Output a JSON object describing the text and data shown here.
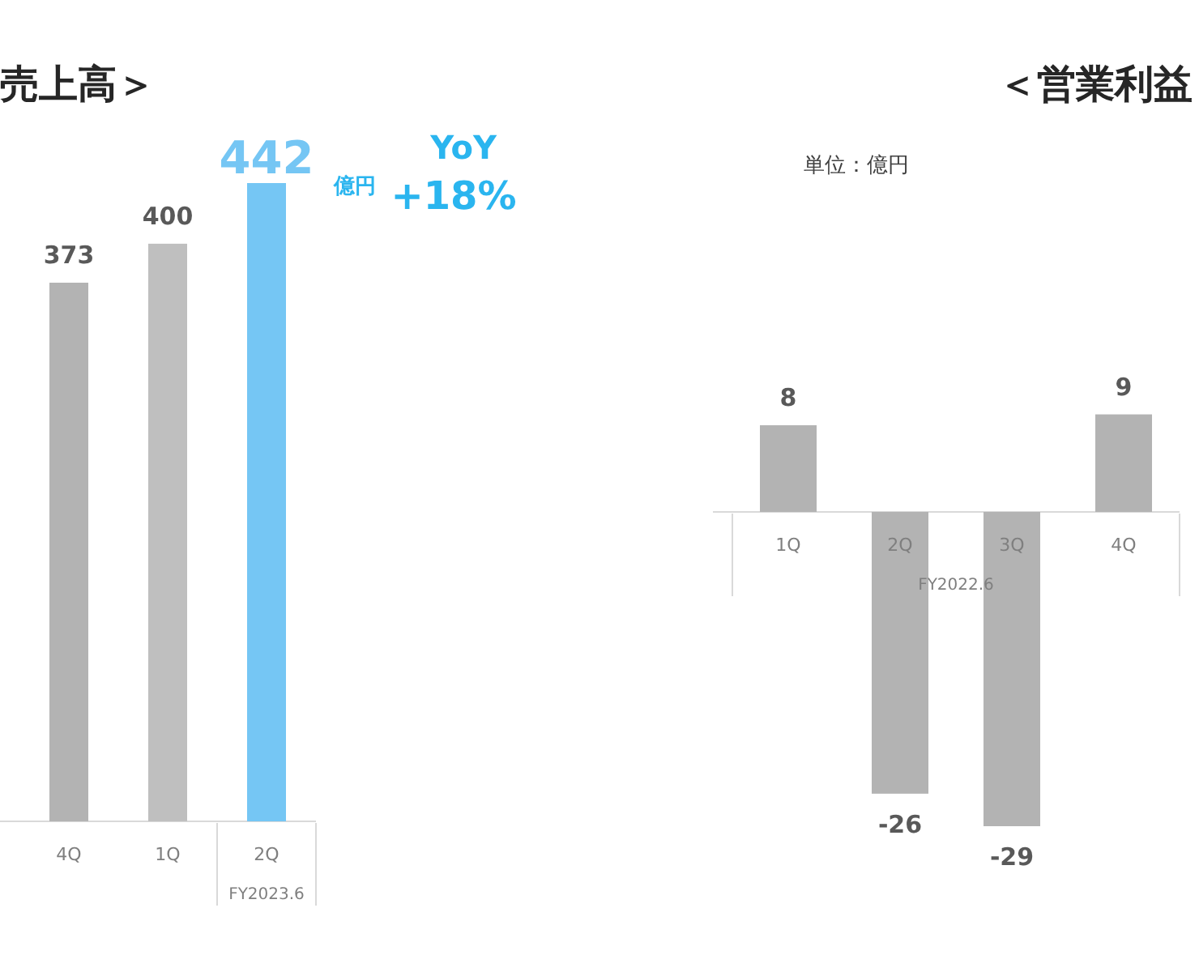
{
  "chart_data": [
    {
      "type": "bar",
      "title": "売上高＞",
      "xlabel": "FY2023.6",
      "categories": [
        "4Q",
        "1Q",
        "2Q"
      ],
      "values": [
        373,
        400,
        442
      ],
      "colors": [
        "#b3b3b3",
        "#bfbfbf",
        "#75c6f4"
      ],
      "data_labels": true,
      "annotations": [
        "億円",
        "YoY",
        "+18%"
      ]
    },
    {
      "type": "bar",
      "title": "＜営業利益",
      "subtitle": "単位：億円",
      "xlabel": "FY2022.6",
      "categories": [
        "1Q",
        "2Q",
        "3Q",
        "4Q"
      ],
      "values": [
        8,
        -26,
        -29,
        9
      ],
      "colors": [
        "#b3b3b3",
        "#b3b3b3",
        "#b3b3b3",
        "#b3b3b3"
      ],
      "data_labels": true
    }
  ]
}
